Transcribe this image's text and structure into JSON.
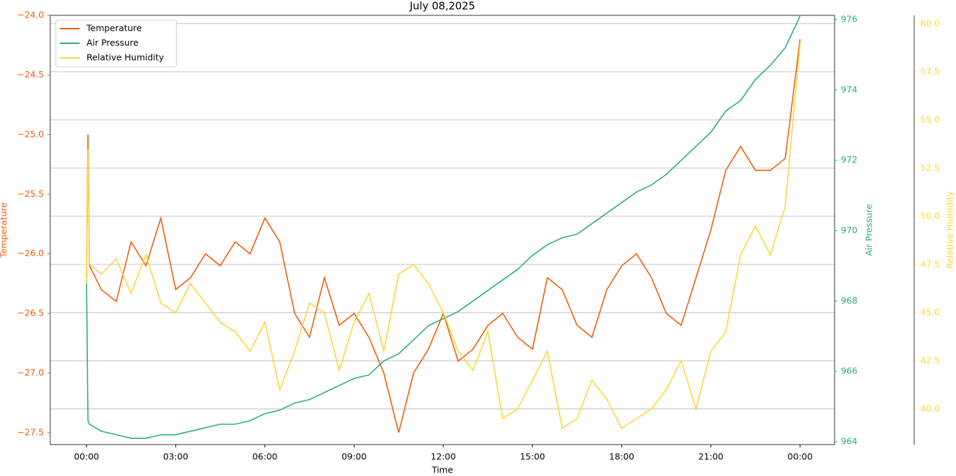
{
  "chart_data": {
    "type": "line",
    "title": "July 08,2025",
    "x_label": "Time",
    "y_label": "Temperature",
    "y2_label": "Air Pressure",
    "y3_label": "Relative Humidity",
    "x": [
      0,
      0.05,
      0.1,
      0.5,
      1,
      1.5,
      2,
      2.5,
      3,
      3.5,
      4,
      4.5,
      5,
      5.5,
      6,
      6.5,
      7,
      7.5,
      8,
      8.5,
      9,
      9.5,
      10,
      10.5,
      11,
      11.5,
      12,
      12.5,
      13,
      13.5,
      14,
      14.5,
      15,
      15.5,
      16,
      16.5,
      17,
      17.5,
      18,
      18.5,
      19,
      19.5,
      20,
      20.5,
      21,
      21.5,
      22,
      22.5,
      23,
      23.5,
      24
    ],
    "series": [
      {
        "name": "Temperature",
        "color": "#f25c05",
        "axis": "y",
        "values": [
          -26.2,
          -25.0,
          -26.1,
          -26.3,
          -26.4,
          -25.9,
          -26.1,
          -25.7,
          -26.3,
          -26.2,
          -26.0,
          -26.1,
          -25.9,
          -26.0,
          -25.7,
          -25.9,
          -26.5,
          -26.7,
          -26.2,
          -26.6,
          -26.5,
          -26.7,
          -27.0,
          -27.5,
          -27.0,
          -26.8,
          -26.5,
          -26.9,
          -26.8,
          -26.6,
          -26.5,
          -26.7,
          -26.8,
          -26.2,
          -26.3,
          -26.6,
          -26.7,
          -26.3,
          -26.1,
          -26.0,
          -26.2,
          -26.5,
          -26.6,
          -26.2,
          -25.8,
          -25.3,
          -25.1,
          -25.3,
          -25.3,
          -25.2,
          -24.2
        ]
      },
      {
        "name": "Air Pressure",
        "color": "#2aaa8a",
        "axis": "y2",
        "values": [
          968.6,
          964.6,
          964.5,
          964.3,
          964.2,
          964.1,
          964.1,
          964.2,
          964.2,
          964.3,
          964.4,
          964.5,
          964.5,
          964.6,
          964.8,
          964.9,
          965.1,
          965.2,
          965.4,
          965.6,
          965.8,
          965.9,
          966.3,
          966.5,
          966.9,
          967.3,
          967.5,
          967.7,
          968.0,
          968.3,
          968.6,
          968.9,
          969.3,
          969.6,
          969.8,
          969.9,
          970.2,
          970.5,
          970.8,
          971.1,
          971.3,
          971.6,
          972.0,
          972.4,
          972.8,
          973.4,
          973.7,
          974.3,
          974.7,
          975.2,
          976.1
        ]
      },
      {
        "name": "Relative Humidity",
        "color": "#fdd43a",
        "axis": "y3",
        "values": [
          46.5,
          53.5,
          47.5,
          47.0,
          47.8,
          46.0,
          48.0,
          45.5,
          45.0,
          46.5,
          45.5,
          44.5,
          44.0,
          43.0,
          44.5,
          41.0,
          43.0,
          45.5,
          45.0,
          42.0,
          44.5,
          46.0,
          43.0,
          47.0,
          47.5,
          46.5,
          45.0,
          43.0,
          42.0,
          44.0,
          39.5,
          40.0,
          41.5,
          43.0,
          39.0,
          39.5,
          41.5,
          40.5,
          39.0,
          39.5,
          40.0,
          41.0,
          42.5,
          40.0,
          43.0,
          44.0,
          48.0,
          49.5,
          48.0,
          50.5,
          59.0
        ]
      }
    ],
    "xlim": [
      -1.22,
      25.16
    ],
    "xticks": [
      {
        "value": 0,
        "label": "00:00"
      },
      {
        "value": 3,
        "label": "03:00"
      },
      {
        "value": 6,
        "label": "06:00"
      },
      {
        "value": 9,
        "label": "09:00"
      },
      {
        "value": 12,
        "label": "12:00"
      },
      {
        "value": 15,
        "label": "15:00"
      },
      {
        "value": 18,
        "label": "18:00"
      },
      {
        "value": 21,
        "label": "21:00"
      },
      {
        "value": 24,
        "label": "00:00"
      }
    ],
    "ylim": [
      -27.6,
      -24.0
    ],
    "yticks": [
      {
        "value": -27.5,
        "label": "−27.5"
      },
      {
        "value": -27.0,
        "label": "−27.0"
      },
      {
        "value": -26.5,
        "label": "−26.5"
      },
      {
        "value": -26.0,
        "label": "−26.0"
      },
      {
        "value": -25.5,
        "label": "−25.5"
      },
      {
        "value": -25.0,
        "label": "−25.0"
      },
      {
        "value": -24.5,
        "label": "−24.5"
      },
      {
        "value": -24.0,
        "label": "−24.0"
      }
    ],
    "y2lim": [
      963.92,
      976.12
    ],
    "y2ticks": [
      964,
      966,
      968,
      970,
      972,
      974,
      976
    ],
    "y3lim": [
      38.15,
      60.43
    ],
    "y3ticks": [
      {
        "value": 40,
        "label": "40.0"
      },
      42.5,
      {
        "value": 45,
        "label": "45.0"
      },
      47.5,
      {
        "value": 50,
        "label": "50.0"
      },
      52.5,
      {
        "value": 55,
        "label": "55.0"
      },
      57.5,
      {
        "value": 60,
        "label": "60.0"
      }
    ],
    "grid": "y3",
    "legend": "upper-left"
  }
}
